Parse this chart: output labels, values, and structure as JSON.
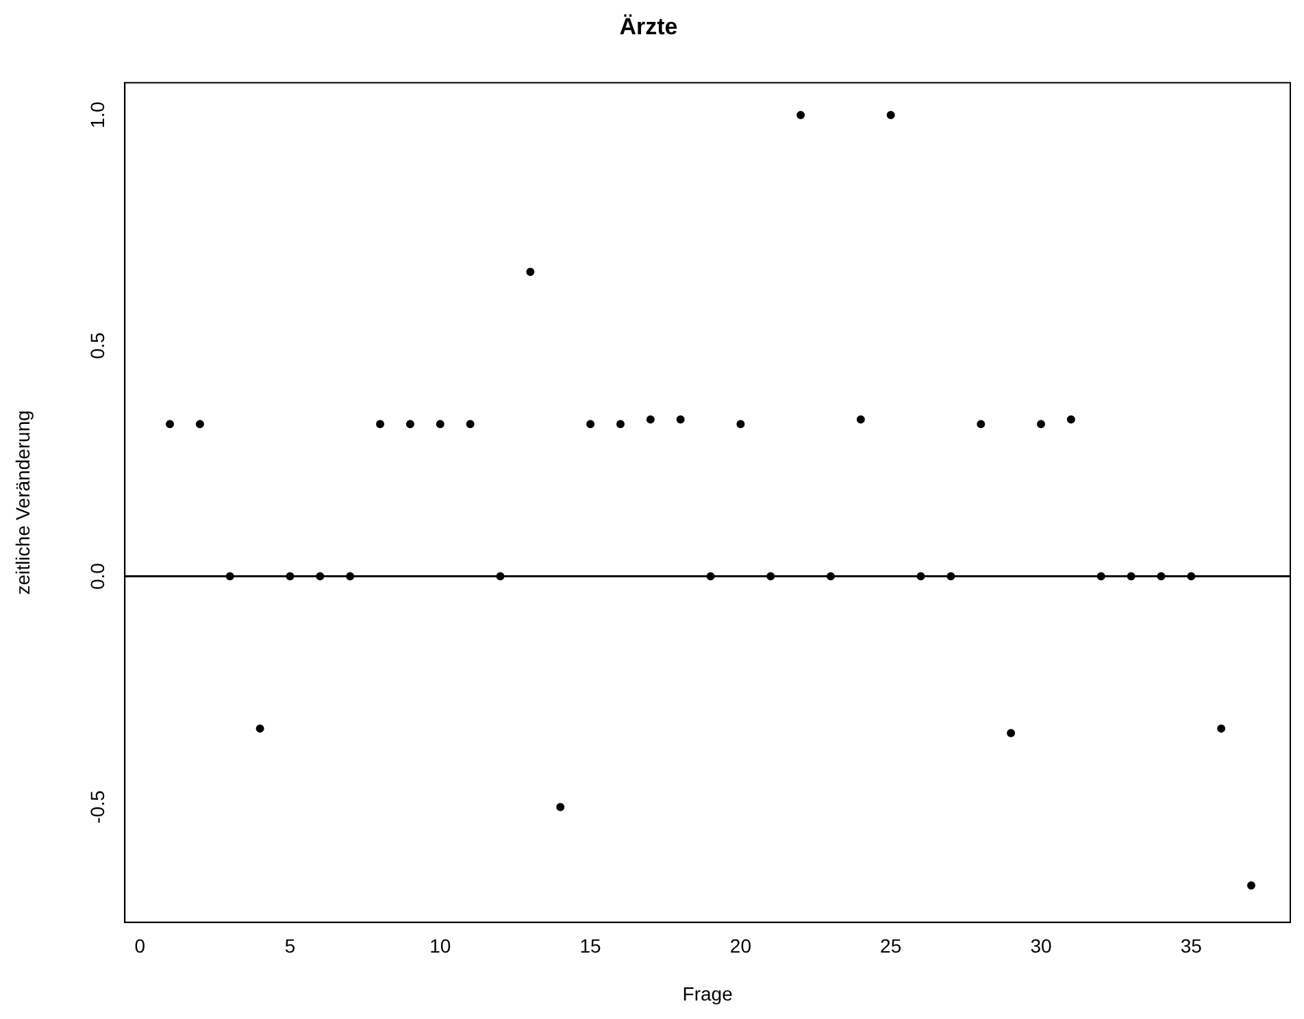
{
  "chart_data": {
    "type": "scatter",
    "title": "Ärzte",
    "xlabel": "Frage",
    "ylabel": "zeitliche Veränderung",
    "x": [
      1,
      2,
      3,
      4,
      5,
      6,
      7,
      8,
      9,
      10,
      11,
      12,
      13,
      14,
      15,
      16,
      17,
      18,
      19,
      20,
      21,
      22,
      23,
      24,
      25,
      26,
      27,
      28,
      29,
      30,
      31,
      32,
      33,
      34,
      35,
      36,
      37
    ],
    "series": [
      {
        "color": "#000000",
        "values": [
          0.33,
          0.33,
          0,
          -0.33,
          0,
          0,
          0,
          0.33,
          0.33,
          0.33,
          0.33,
          0,
          0.66,
          -0.5,
          0.33,
          0.33,
          0.34,
          0.34,
          0,
          0.33,
          0,
          1,
          0,
          0.34,
          1,
          0,
          0,
          0.33,
          -0.34,
          0.33,
          0.34,
          0,
          0,
          0,
          0,
          -0.33,
          -0.67
        ]
      }
    ],
    "xlim": [
      -0.5,
      38.3
    ],
    "xticks": [
      0,
      5,
      10,
      15,
      20,
      25,
      30,
      35
    ],
    "ylim": [
      -0.75,
      1.07
    ],
    "yticks": [
      {
        "value": -0.5,
        "label": "-0.5"
      },
      {
        "value": 0,
        "label": "0.0"
      },
      {
        "value": 0.5,
        "label": "0.5"
      },
      {
        "value": 1,
        "label": "1.0"
      }
    ],
    "ref_lines": [
      {
        "axis": "y",
        "value": 0,
        "color": "#000000"
      }
    ],
    "grid": false,
    "legend": false,
    "marker": "circle"
  }
}
